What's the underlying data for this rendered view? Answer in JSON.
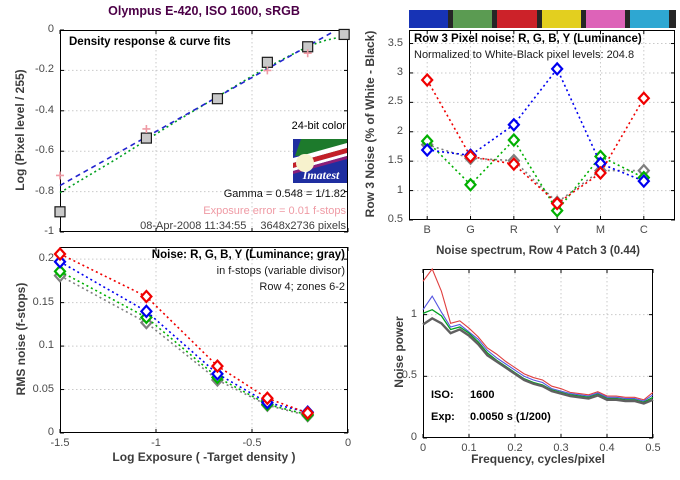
{
  "figure": {
    "title": "Olympus E-420, ISO 1600, sRGB",
    "title_color": "#4c0047",
    "background": "#ffffff",
    "grid_color": "#c9c9c9",
    "tick_label_color": "#4a4a4a",
    "axis_label_color": "#3d3d3d"
  },
  "chart_data": [
    {
      "id": "density",
      "type": "line",
      "title": "Density response & curve fits",
      "ylabel": "Log (Pixel level / 255)",
      "xlim": [
        -1.5,
        0
      ],
      "ylim": [
        -1,
        0
      ],
      "xticks": {
        "values": [
          -1.5,
          -1,
          -0.5,
          0
        ],
        "labels": null,
        "grid": true
      },
      "yticks": {
        "values": [
          0,
          -0.2,
          -0.4,
          -0.6,
          -0.8,
          -1
        ],
        "labels": [
          "0",
          "-0.2",
          "-0.4",
          "-0.6",
          "-0.8",
          "-1"
        ],
        "grid": true
      },
      "series": [
        {
          "name": "curve-fit-2nd-order",
          "color": "#00a020",
          "style": "dotted",
          "width": 1.6,
          "x": [
            -1.5,
            -1.35,
            -1.2,
            -1.05,
            -0.9,
            -0.75,
            -0.6,
            -0.45,
            -0.3,
            -0.2,
            -0.12,
            -0.05,
            0
          ],
          "y": [
            -0.805,
            -0.72,
            -0.635,
            -0.545,
            -0.455,
            -0.37,
            -0.285,
            -0.2,
            -0.125,
            -0.078,
            -0.052,
            -0.037,
            -0.032
          ]
        },
        {
          "name": "curve-fit-1st-order",
          "color": "#2323cf",
          "style": "dashed",
          "width": 1.6,
          "x": [
            -1.5,
            -0.07
          ],
          "y": [
            -0.77,
            -0.005
          ]
        },
        {
          "name": "measured-patches",
          "color": "#1a1a1a",
          "fill": "#c9c9c9",
          "marker": "square",
          "x": [
            -1.5,
            -1.05,
            -0.68,
            -0.42,
            -0.21,
            -0.02
          ],
          "y": [
            -0.9,
            -0.535,
            -0.34,
            -0.16,
            -0.083,
            -0.022
          ]
        },
        {
          "name": "exposure-markers",
          "color": "#ef9aa4",
          "marker": "plus",
          "x": [
            -1.5,
            -1.05,
            -0.42,
            -0.21
          ],
          "y": [
            -0.72,
            -0.49,
            -0.2,
            -0.115
          ]
        }
      ],
      "annotations": {
        "color_depth": "24-bit color",
        "logo_text": "Imatest",
        "gamma": "Gamma = 0.548 = 1/1.82",
        "exposure_error": "Exposure error = 0.01 f-stops",
        "exposure_error_color": "#ef9aa4",
        "timestamp": "08-Apr-2008 11:34:55",
        "resolution": "3648x2736 pixels"
      }
    },
    {
      "id": "pixel_noise",
      "type": "line",
      "title": "Row 3 Pixel noise: R, G, B, Y (Luminance)",
      "subtitle": "Normalized to White-Black pixel levels: 204.8",
      "ylabel": "Row 3 Noise (% of White - Black)",
      "categories": [
        "B",
        "G",
        "R",
        "Y",
        "M",
        "C"
      ],
      "xlim": [
        -0.42,
        5.72
      ],
      "ylim": [
        0.5,
        3.73
      ],
      "xticks": {
        "values": [
          0,
          1,
          2,
          3,
          4,
          5
        ],
        "labels": [
          "B",
          "G",
          "R",
          "Y",
          "M",
          "C"
        ],
        "grid": true
      },
      "yticks": {
        "values": [
          0.5,
          1,
          1.5,
          2,
          2.5,
          3,
          3.5
        ],
        "labels": [
          "0.5",
          "1",
          "1.5",
          "2",
          "2.5",
          "3",
          "3.5"
        ],
        "grid": true
      },
      "colorbar": {
        "patches": [
          "#1733b5",
          "#5b9b52",
          "#cc2229",
          "#e3cf1f",
          "#dd63b8",
          "#2ea7d2"
        ],
        "separator": "#262626"
      },
      "series": [
        {
          "name": "Y-luminance",
          "color": "#7f7f7f",
          "style": "dotted",
          "width": 1.6,
          "marker": "diamond",
          "values": [
            1.78,
            1.55,
            1.51,
            0.8,
            1.34,
            1.34
          ]
        },
        {
          "name": "G",
          "color": "#00b000",
          "style": "dotted",
          "width": 1.6,
          "marker": "diamond",
          "values": [
            1.84,
            1.1,
            1.86,
            0.66,
            1.58,
            1.22
          ]
        },
        {
          "name": "B",
          "color": "#0000f0",
          "style": "dotted",
          "width": 1.6,
          "marker": "diamond",
          "values": [
            1.69,
            1.6,
            2.12,
            3.07,
            1.46,
            1.16
          ]
        },
        {
          "name": "R",
          "color": "#f00000",
          "style": "dotted",
          "width": 1.6,
          "marker": "diamond",
          "values": [
            2.88,
            1.58,
            1.45,
            0.78,
            1.3,
            2.57
          ]
        }
      ]
    },
    {
      "id": "rms_noise",
      "type": "line",
      "title": "Noise: R, G, B, Y (Luminance; gray)",
      "subtitle1": "in f-stops (variable divisor)",
      "subtitle2": "Row 4; zones 6-2",
      "xlabel": "Log Exposure ( -Target density )",
      "ylabel": "RMS noise (f-stops)",
      "xlim": [
        -1.5,
        0
      ],
      "ylim": [
        0,
        0.214
      ],
      "xticks": {
        "values": [
          -1.5,
          -1,
          -0.5,
          0
        ],
        "labels": [
          "-1.5",
          "-1",
          "-0.5",
          "0"
        ],
        "grid": true
      },
      "yticks": {
        "values": [
          0,
          0.05,
          0.1,
          0.15,
          0.2
        ],
        "labels": [
          "0",
          "0.05",
          "0.1",
          "0.15",
          "0.2"
        ],
        "grid": true
      },
      "series": [
        {
          "name": "Y-luminance",
          "color": "#7f7f7f",
          "style": "dotted",
          "width": 1.6,
          "marker": "diamond",
          "x": [
            -1.5,
            -1.05,
            -0.68,
            -0.42,
            -0.21
          ],
          "y": [
            0.181,
            0.127,
            0.061,
            0.032,
            0.02
          ]
        },
        {
          "name": "G",
          "color": "#00b000",
          "style": "dotted",
          "width": 1.6,
          "marker": "diamond",
          "x": [
            -1.5,
            -1.05,
            -0.68,
            -0.42,
            -0.21
          ],
          "y": [
            0.186,
            0.133,
            0.064,
            0.033,
            0.021
          ]
        },
        {
          "name": "B",
          "color": "#0000f0",
          "style": "dotted",
          "width": 1.6,
          "marker": "diamond",
          "x": [
            -1.5,
            -1.05,
            -0.68,
            -0.42,
            -0.21
          ],
          "y": [
            0.197,
            0.14,
            0.068,
            0.035,
            0.024
          ]
        },
        {
          "name": "R",
          "color": "#f00000",
          "style": "dotted",
          "width": 1.6,
          "marker": "diamond",
          "x": [
            -1.5,
            -1.05,
            -0.68,
            -0.42,
            -0.21
          ],
          "y": [
            0.206,
            0.157,
            0.077,
            0.04,
            0.023
          ]
        }
      ]
    },
    {
      "id": "noise_spectrum",
      "type": "line",
      "title": "Noise spectrum, Row 4 Patch 3 (0.44)",
      "xlabel": "Frequency, cycles/pixel",
      "ylabel": "Noise power",
      "xlim": [
        0,
        0.5
      ],
      "ylim": [
        0,
        1.37
      ],
      "xticks": {
        "values": [
          0,
          0.1,
          0.2,
          0.3,
          0.4,
          0.5
        ],
        "labels": [
          "0",
          "0.1",
          "0.2",
          "0.3",
          "0.4",
          "0.5"
        ],
        "grid": true
      },
      "yticks": {
        "values": [
          0,
          0.5,
          1
        ],
        "labels": [
          "0",
          "0.5",
          "1"
        ],
        "grid": true
      },
      "annotations": {
        "iso_label": "ISO:",
        "iso_value": "1600",
        "exp_label": "Exp:",
        "exp_value": "0.0050 s  (1/200)"
      },
      "x": [
        0,
        0.02,
        0.04,
        0.06,
        0.08,
        0.1,
        0.12,
        0.14,
        0.16,
        0.18,
        0.2,
        0.22,
        0.24,
        0.26,
        0.28,
        0.3,
        0.32,
        0.34,
        0.36,
        0.38,
        0.4,
        0.42,
        0.44,
        0.46,
        0.48,
        0.5
      ],
      "series": [
        {
          "name": "R",
          "color": "#e04040",
          "style": "solid",
          "width": 1.1,
          "y": [
            1.27,
            1.37,
            1.19,
            0.93,
            0.95,
            0.89,
            0.82,
            0.73,
            0.68,
            0.62,
            0.57,
            0.52,
            0.49,
            0.47,
            0.42,
            0.4,
            0.37,
            0.36,
            0.35,
            0.375,
            0.34,
            0.34,
            0.33,
            0.33,
            0.31,
            0.37
          ]
        },
        {
          "name": "B",
          "color": "#5555e0",
          "style": "solid",
          "width": 1.1,
          "y": [
            1.04,
            1.15,
            1.02,
            0.9,
            0.92,
            0.86,
            0.8,
            0.71,
            0.65,
            0.6,
            0.55,
            0.5,
            0.47,
            0.45,
            0.4,
            0.38,
            0.36,
            0.35,
            0.34,
            0.365,
            0.33,
            0.33,
            0.32,
            0.32,
            0.3,
            0.35
          ]
        },
        {
          "name": "G",
          "color": "#00a020",
          "style": "solid",
          "width": 1.3,
          "y": [
            1.01,
            1.04,
            0.99,
            0.88,
            0.9,
            0.85,
            0.78,
            0.69,
            0.63,
            0.58,
            0.53,
            0.48,
            0.45,
            0.43,
            0.39,
            0.37,
            0.35,
            0.34,
            0.33,
            0.355,
            0.32,
            0.32,
            0.31,
            0.31,
            0.29,
            0.33
          ]
        },
        {
          "name": "Y-luminance",
          "color": "#606060",
          "style": "solid",
          "width": 2.4,
          "y": [
            0.92,
            0.97,
            0.93,
            0.85,
            0.88,
            0.83,
            0.76,
            0.67,
            0.62,
            0.57,
            0.52,
            0.47,
            0.44,
            0.42,
            0.38,
            0.36,
            0.34,
            0.33,
            0.32,
            0.345,
            0.31,
            0.31,
            0.3,
            0.3,
            0.28,
            0.31
          ]
        }
      ]
    }
  ]
}
